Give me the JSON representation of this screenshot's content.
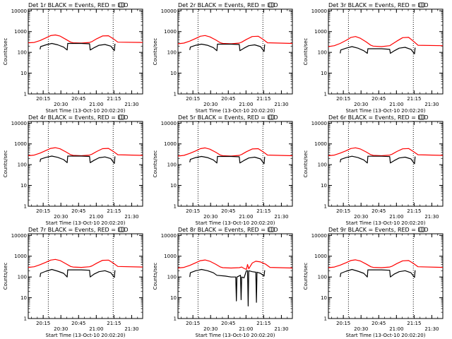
{
  "colors": {
    "events": "#000000",
    "lld": "#ff0000",
    "axis": "#000000",
    "background": "#ffffff"
  },
  "shared": {
    "xlabel": "Start Time (13-Oct-10 20:02:20)",
    "ylabel": "Counts/sec",
    "y_ticks": [
      1,
      10,
      100,
      1000,
      10000
    ],
    "y_tick_labels": [
      "1",
      "10",
      "100",
      "1000",
      "10000"
    ],
    "ylim": [
      1,
      12000
    ],
    "x_ticks_min": [
      12.67,
      27.67,
      42.67,
      57.67,
      72.67,
      87.67
    ],
    "x_tick_labels": [
      "20:15",
      "20:30",
      "20:45",
      "21:00",
      "21:15",
      "21:30"
    ],
    "xlim_min": [
      0,
      97
    ]
  },
  "chart_data": [
    {
      "type": "line",
      "title": "Det 1r  BLACK = Events, RED = LLD",
      "vlines_min": [
        17,
        72
      ],
      "lld": {
        "name": "LLD",
        "x": [
          0,
          5,
          10,
          15,
          19,
          23,
          27,
          32,
          36,
          38,
          45,
          52,
          54,
          58,
          63,
          68,
          72,
          76,
          97
        ],
        "y": [
          290,
          300,
          370,
          500,
          640,
          690,
          610,
          420,
          310,
          290,
          280,
          300,
          330,
          450,
          620,
          630,
          460,
          310,
          300
        ]
      },
      "events": {
        "name": "Events",
        "x": [
          10,
          10.5,
          15,
          20,
          25,
          30,
          33,
          33.5,
          36,
          45,
          52,
          52.5,
          56,
          60,
          65,
          70,
          73,
          73.5
        ],
        "y": [
          140,
          190,
          230,
          270,
          230,
          180,
          130,
          270,
          270,
          270,
          260,
          130,
          170,
          220,
          240,
          200,
          120,
          260
        ]
      }
    },
    {
      "type": "line",
      "title": "Det 2r  BLACK = Events, RED = LLD",
      "vlines_min": [
        17,
        72
      ],
      "lld": {
        "name": "LLD",
        "x": [
          0,
          5,
          10,
          15,
          19,
          23,
          27,
          32,
          36,
          38,
          45,
          52,
          54,
          58,
          63,
          68,
          72,
          76,
          97
        ],
        "y": [
          260,
          280,
          350,
          470,
          600,
          650,
          560,
          400,
          290,
          270,
          260,
          280,
          310,
          420,
          580,
          600,
          430,
          290,
          270
        ]
      },
      "events": {
        "name": "Events",
        "x": [
          10,
          10.5,
          15,
          20,
          25,
          30,
          33,
          33.5,
          36,
          45,
          52,
          52.5,
          56,
          60,
          65,
          70,
          73,
          73.5
        ],
        "y": [
          130,
          180,
          220,
          250,
          220,
          170,
          120,
          250,
          250,
          250,
          240,
          120,
          160,
          210,
          230,
          190,
          110,
          240
        ]
      }
    },
    {
      "type": "line",
      "title": "Det 3r  BLACK = Events, RED = LLD",
      "vlines_min": [
        17,
        72
      ],
      "lld": {
        "name": "LLD",
        "x": [
          0,
          5,
          10,
          15,
          19,
          23,
          27,
          32,
          36,
          38,
          45,
          52,
          54,
          58,
          63,
          68,
          72,
          76,
          97
        ],
        "y": [
          190,
          210,
          270,
          380,
          520,
          580,
          480,
          320,
          220,
          200,
          190,
          210,
          250,
          350,
          510,
          530,
          350,
          220,
          210
        ]
      },
      "events": {
        "name": "Events",
        "x": [
          10,
          10.5,
          15,
          20,
          25,
          30,
          33,
          33.5,
          36,
          45,
          52,
          52.5,
          56,
          60,
          65,
          70,
          73,
          73.5
        ],
        "y": [
          90,
          130,
          160,
          190,
          160,
          120,
          90,
          150,
          150,
          150,
          140,
          90,
          120,
          160,
          175,
          140,
          85,
          170
        ]
      }
    },
    {
      "type": "line",
      "title": "Det 4r  BLACK = Events, RED = LLD",
      "vlines_min": [
        17,
        72
      ],
      "lld": {
        "name": "LLD",
        "x": [
          0,
          5,
          10,
          15,
          19,
          23,
          27,
          32,
          36,
          38,
          45,
          52,
          54,
          58,
          63,
          68,
          72,
          76,
          97
        ],
        "y": [
          270,
          290,
          360,
          480,
          610,
          660,
          580,
          410,
          300,
          280,
          270,
          290,
          320,
          430,
          590,
          610,
          440,
          300,
          280
        ]
      },
      "events": {
        "name": "Events",
        "x": [
          10,
          10.5,
          15,
          20,
          25,
          30,
          33,
          33.5,
          36,
          45,
          52,
          52.5,
          56,
          60,
          65,
          70,
          73,
          73.5
        ],
        "y": [
          135,
          185,
          225,
          260,
          225,
          175,
          125,
          260,
          260,
          260,
          250,
          125,
          165,
          215,
          235,
          195,
          115,
          250
        ]
      }
    },
    {
      "type": "line",
      "title": "Det 5r  BLACK = Events, RED = LLD",
      "vlines_min": [
        17,
        72
      ],
      "lld": {
        "name": "LLD",
        "x": [
          0,
          5,
          10,
          15,
          19,
          23,
          27,
          32,
          36,
          38,
          45,
          52,
          54,
          58,
          63,
          68,
          72,
          76,
          97
        ],
        "y": [
          260,
          280,
          350,
          460,
          590,
          640,
          560,
          400,
          290,
          270,
          260,
          280,
          310,
          420,
          570,
          590,
          420,
          290,
          270
        ]
      },
      "events": {
        "name": "Events",
        "x": [
          10,
          10.5,
          15,
          20,
          25,
          30,
          33,
          33.5,
          36,
          45,
          52,
          52.5,
          56,
          60,
          65,
          70,
          73,
          73.5
        ],
        "y": [
          130,
          180,
          220,
          250,
          220,
          170,
          120,
          250,
          250,
          250,
          240,
          120,
          160,
          210,
          230,
          190,
          110,
          240
        ]
      }
    },
    {
      "type": "line",
      "title": "Det 6r  BLACK = Events, RED = LLD",
      "vlines_min": [
        17,
        72
      ],
      "lld": {
        "name": "LLD",
        "x": [
          0,
          5,
          10,
          15,
          19,
          23,
          27,
          32,
          36,
          38,
          45,
          52,
          54,
          58,
          63,
          68,
          72,
          76,
          97
        ],
        "y": [
          270,
          290,
          360,
          470,
          600,
          650,
          570,
          410,
          300,
          280,
          270,
          290,
          320,
          430,
          580,
          600,
          430,
          300,
          280
        ]
      },
      "events": {
        "name": "Events",
        "x": [
          10,
          10.5,
          15,
          20,
          25,
          30,
          33,
          33.5,
          36,
          45,
          52,
          52.5,
          56,
          60,
          65,
          70,
          73,
          73.5
        ],
        "y": [
          130,
          180,
          220,
          255,
          220,
          170,
          120,
          255,
          255,
          255,
          245,
          120,
          160,
          210,
          230,
          190,
          110,
          245
        ]
      }
    },
    {
      "type": "line",
      "title": "Det 7r  BLACK = Events, RED = LLD",
      "vlines_min": [
        17,
        72
      ],
      "lld": {
        "name": "LLD",
        "x": [
          0,
          5,
          10,
          15,
          19,
          23,
          27,
          32,
          36,
          38,
          45,
          52,
          54,
          58,
          63,
          68,
          72,
          76,
          97
        ],
        "y": [
          290,
          310,
          390,
          510,
          650,
          700,
          620,
          430,
          320,
          300,
          290,
          310,
          340,
          460,
          630,
          650,
          470,
          320,
          300
        ]
      },
      "events": {
        "name": "Events",
        "x": [
          10,
          10.5,
          15,
          20,
          25,
          30,
          33,
          33.5,
          36,
          45,
          52,
          52.5,
          56,
          60,
          65,
          70,
          73,
          73.5
        ],
        "y": [
          100,
          150,
          190,
          230,
          190,
          150,
          100,
          220,
          220,
          220,
          210,
          100,
          140,
          180,
          200,
          160,
          95,
          210
        ]
      }
    },
    {
      "type": "line",
      "title": "Det 8r  BLACK = Events, RED = LLD",
      "vlines_min": [
        17,
        72
      ],
      "lld": {
        "name": "LLD",
        "x": [
          0,
          5,
          10,
          15,
          19,
          23,
          27,
          32,
          36,
          38,
          45,
          52,
          54,
          56,
          58,
          59,
          60,
          63,
          66,
          70,
          74,
          78,
          97
        ],
        "y": [
          270,
          290,
          360,
          480,
          610,
          660,
          570,
          410,
          300,
          280,
          270,
          280,
          300,
          260,
          230,
          400,
          250,
          470,
          570,
          530,
          420,
          290,
          270
        ]
      },
      "events": {
        "name": "Events",
        "x": [
          10,
          10.5,
          15,
          20,
          25,
          30,
          33,
          40,
          45,
          49,
          49.5,
          50,
          53,
          53.5,
          54,
          56,
          58,
          59,
          59.5,
          60,
          63,
          66,
          66.5,
          67,
          70,
          73,
          73.5
        ],
        "y": [
          100,
          160,
          200,
          230,
          200,
          160,
          120,
          110,
          100,
          100,
          7,
          100,
          120,
          8,
          100,
          90,
          200,
          200,
          4,
          200,
          180,
          170,
          6,
          170,
          150,
          110,
          210
        ]
      }
    },
    {
      "type": "line",
      "title": "Det 9r  BLACK = Events, RED = LLD",
      "vlines_min": [
        17,
        72
      ],
      "lld": {
        "name": "LLD",
        "x": [
          0,
          5,
          10,
          15,
          19,
          23,
          27,
          32,
          36,
          38,
          45,
          52,
          54,
          58,
          63,
          68,
          72,
          76,
          97
        ],
        "y": [
          280,
          300,
          370,
          490,
          620,
          670,
          590,
          420,
          310,
          290,
          280,
          300,
          330,
          440,
          600,
          620,
          450,
          310,
          290
        ]
      },
      "events": {
        "name": "Events",
        "x": [
          10,
          10.5,
          15,
          20,
          25,
          30,
          33,
          33.5,
          36,
          45,
          52,
          52.5,
          56,
          60,
          65,
          70,
          73,
          73.5
        ],
        "y": [
          100,
          150,
          190,
          230,
          190,
          150,
          100,
          220,
          220,
          220,
          210,
          100,
          140,
          180,
          200,
          160,
          95,
          210
        ]
      }
    }
  ]
}
